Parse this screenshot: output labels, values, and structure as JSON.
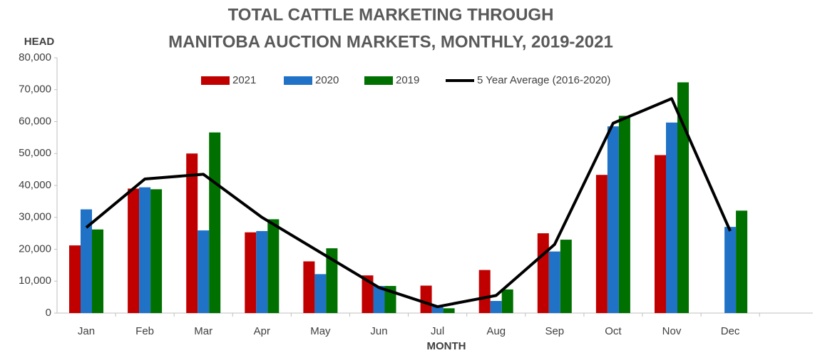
{
  "chart_data": {
    "type": "bar_line",
    "title": [
      "TOTAL CATTLE MARKETING THROUGH",
      "MANITOBA AUCTION MARKETS, MONTHLY, 2019-2021"
    ],
    "y_label": "HEAD",
    "x_label": "MONTH",
    "categories": [
      "Jan",
      "Feb",
      "Mar",
      "Apr",
      "May",
      "Jun",
      "Jul",
      "Aug",
      "Sep",
      "Oct",
      "Nov",
      "Dec"
    ],
    "series": [
      {
        "name": "2021",
        "color": "#c00000",
        "kind": "bar",
        "values": [
          21200,
          39000,
          50000,
          25300,
          16200,
          11800,
          8600,
          13500,
          25000,
          43300,
          49500,
          null
        ]
      },
      {
        "name": "2020",
        "color": "#1f72c6",
        "kind": "bar",
        "values": [
          32500,
          39400,
          25900,
          25700,
          12200,
          8500,
          2000,
          3800,
          19300,
          58500,
          59700,
          27000
        ]
      },
      {
        "name": "2019",
        "color": "#007000",
        "kind": "bar",
        "values": [
          26200,
          38800,
          56600,
          29400,
          20300,
          8500,
          1500,
          7400,
          23000,
          61800,
          72300,
          32100
        ]
      },
      {
        "name": "5 Year Average (2016-2020)",
        "color": "#000000",
        "kind": "line",
        "values": [
          26800,
          42000,
          43500,
          30000,
          19000,
          8000,
          2000,
          5500,
          21500,
          59500,
          67200,
          25700
        ]
      }
    ],
    "ylim": [
      0,
      80000
    ],
    "yticks": [
      0,
      {
        "value": 10000,
        "label": "10,000"
      },
      {
        "value": 20000,
        "label": "20,000"
      },
      {
        "value": 30000,
        "label": "30,000"
      },
      {
        "value": 40000,
        "label": "40,000"
      },
      {
        "value": 50000,
        "label": "50,000"
      },
      {
        "value": 60000,
        "label": "60,000"
      },
      {
        "value": 70000,
        "label": "70,000"
      },
      {
        "value": 80000,
        "label": "80,000"
      }
    ],
    "legend": "top",
    "grid": false
  }
}
